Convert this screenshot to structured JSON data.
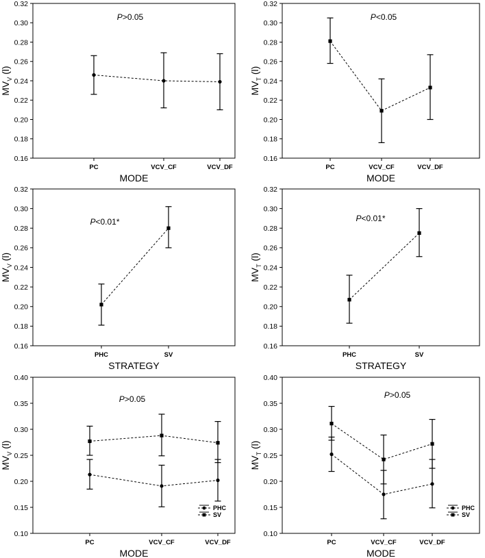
{
  "figure": {
    "background": "#ffffff",
    "ink": "#000000"
  },
  "chart_data": [
    {
      "id": "p1",
      "type": "line-errorbar",
      "ylabel_main": "MV",
      "ylabel_sub": "V",
      "ylabel_unit": " (l)",
      "xlabel": "MODE",
      "categories": [
        "PC",
        "VCV_CF",
        "VCV_DF"
      ],
      "ylim": [
        0.16,
        0.32
      ],
      "yticks": [
        0.16,
        0.18,
        0.2,
        0.22,
        0.24,
        0.26,
        0.28,
        0.3,
        0.32
      ],
      "tick_format": "0.00",
      "annotation": {
        "italic": "P",
        "rest": ">0.05"
      },
      "series": [
        {
          "name": "",
          "marker": "circle",
          "values": [
            0.246,
            0.24,
            0.239
          ],
          "lower": [
            0.226,
            0.212,
            0.21
          ],
          "upper": [
            0.266,
            0.269,
            0.268
          ]
        }
      ],
      "legend": []
    },
    {
      "id": "p2",
      "type": "line-errorbar",
      "ylabel_main": "MV",
      "ylabel_sub": "T",
      "ylabel_unit": " (l)",
      "xlabel": "MODE",
      "categories": [
        "PC",
        "VCV_CF",
        "VCV_DF"
      ],
      "ylim": [
        0.16,
        0.32
      ],
      "yticks": [
        0.16,
        0.18,
        0.2,
        0.22,
        0.24,
        0.26,
        0.28,
        0.3,
        0.32
      ],
      "tick_format": "0.00",
      "annotation": {
        "italic": "P",
        "rest": "<0.05"
      },
      "series": [
        {
          "name": "",
          "marker": "square",
          "values": [
            0.281,
            0.209,
            0.233
          ],
          "lower": [
            0.258,
            0.176,
            0.2
          ],
          "upper": [
            0.305,
            0.242,
            0.267
          ]
        }
      ],
      "legend": []
    },
    {
      "id": "p3",
      "type": "line-errorbar",
      "ylabel_main": "MV",
      "ylabel_sub": "V",
      "ylabel_unit": " (l)",
      "xlabel": "STRATEGY",
      "categories": [
        "PHC",
        "SV"
      ],
      "ylim": [
        0.16,
        0.32
      ],
      "yticks": [
        0.16,
        0.18,
        0.2,
        0.22,
        0.24,
        0.26,
        0.28,
        0.3,
        0.32
      ],
      "tick_format": "0.00",
      "annotation": {
        "italic": "P",
        "rest": "<0.01*"
      },
      "series": [
        {
          "name": "",
          "marker": "square",
          "values": [
            0.202,
            0.28
          ],
          "lower": [
            0.181,
            0.26
          ],
          "upper": [
            0.223,
            0.302
          ]
        }
      ],
      "legend": []
    },
    {
      "id": "p4",
      "type": "line-errorbar",
      "ylabel_main": "MV",
      "ylabel_sub": "T",
      "ylabel_unit": " (l)",
      "xlabel": "STRATEGY",
      "categories": [
        "PHC",
        "SV"
      ],
      "ylim": [
        0.16,
        0.32
      ],
      "yticks": [
        0.16,
        0.18,
        0.2,
        0.22,
        0.24,
        0.26,
        0.28,
        0.3,
        0.32
      ],
      "tick_format": "0.00",
      "annotation": {
        "italic": "P",
        "rest": "<0.01*"
      },
      "series": [
        {
          "name": "",
          "marker": "square",
          "values": [
            0.207,
            0.275
          ],
          "lower": [
            0.183,
            0.251
          ],
          "upper": [
            0.232,
            0.3
          ]
        }
      ],
      "legend": []
    },
    {
      "id": "p5",
      "type": "line-errorbar",
      "ylabel_main": "MV",
      "ylabel_sub": "V",
      "ylabel_unit": " (l)",
      "xlabel": "MODE",
      "categories": [
        "PC",
        "VCV_CF",
        "VCV_DF"
      ],
      "ylim": [
        0.1,
        0.4
      ],
      "yticks": [
        0.1,
        0.15,
        0.2,
        0.25,
        0.3,
        0.35,
        0.4
      ],
      "tick_format": "0.00",
      "annotation": {
        "italic": "P",
        "rest": ">0.05"
      },
      "series": [
        {
          "name": "PHC",
          "marker": "circle",
          "values": [
            0.213,
            0.191,
            0.202
          ],
          "lower": [
            0.185,
            0.151,
            0.162
          ],
          "upper": [
            0.242,
            0.231,
            0.242
          ]
        },
        {
          "name": "SV",
          "marker": "square",
          "values": [
            0.277,
            0.288,
            0.274
          ],
          "lower": [
            0.25,
            0.249,
            0.236
          ],
          "upper": [
            0.306,
            0.329,
            0.315
          ]
        }
      ],
      "legend": [
        "PHC",
        "SV"
      ]
    },
    {
      "id": "p6",
      "type": "line-errorbar",
      "ylabel_main": "MV",
      "ylabel_sub": "T",
      "ylabel_unit": " (l)",
      "xlabel": "MODE",
      "categories": [
        "PC",
        "VCV_CF",
        "VCV_DF"
      ],
      "ylim": [
        0.1,
        0.4
      ],
      "yticks": [
        0.1,
        0.15,
        0.2,
        0.25,
        0.3,
        0.35,
        0.4
      ],
      "tick_format": "0.00",
      "annotation": {
        "italic": "P",
        "rest": ">0.05"
      },
      "series": [
        {
          "name": "PHC",
          "marker": "circle",
          "values": [
            0.252,
            0.175,
            0.195
          ],
          "lower": [
            0.219,
            0.128,
            0.149
          ],
          "upper": [
            0.285,
            0.221,
            0.242
          ]
        },
        {
          "name": "SV",
          "marker": "square",
          "values": [
            0.311,
            0.242,
            0.272
          ],
          "lower": [
            0.279,
            0.195,
            0.225
          ],
          "upper": [
            0.344,
            0.289,
            0.319
          ]
        }
      ],
      "legend": [
        "PHC",
        "SV"
      ]
    }
  ]
}
